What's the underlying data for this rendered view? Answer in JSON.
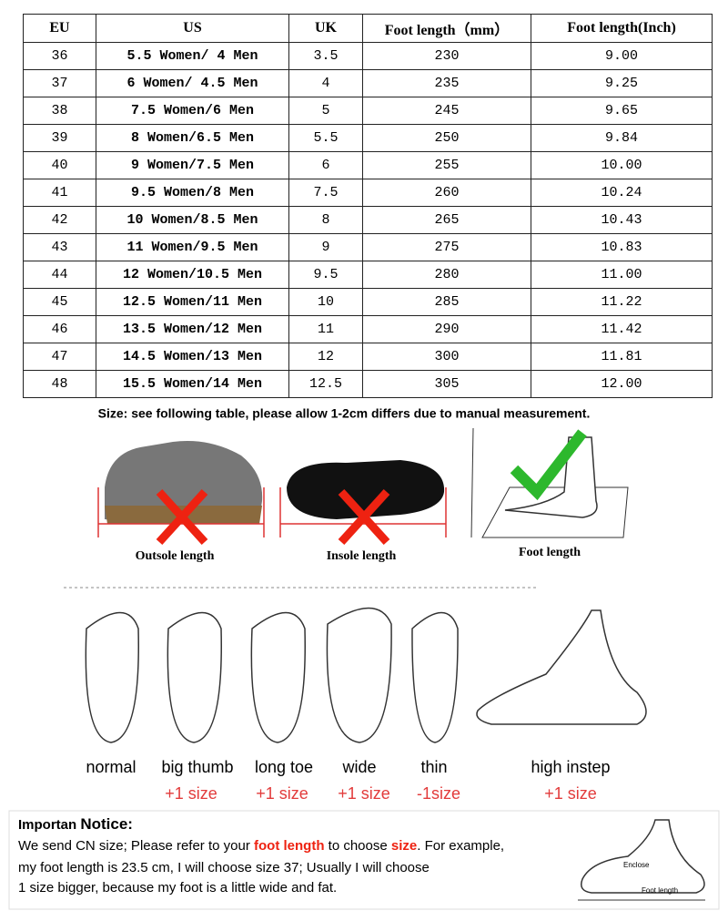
{
  "table": {
    "header": [
      "EU",
      "US",
      "UK",
      "Foot length（mm）",
      "Foot length(Inch)"
    ],
    "rows": [
      [
        "36",
        "5.5 Women/ 4 Men",
        "3.5",
        "230",
        "9.00"
      ],
      [
        "37",
        "6 Women/ 4.5 Men",
        "4",
        "235",
        "9.25"
      ],
      [
        "38",
        "7.5 Women/6 Men",
        "5",
        "245",
        "9.65"
      ],
      [
        "39",
        "8 Women/6.5 Men",
        "5.5",
        "250",
        "9.84"
      ],
      [
        "40",
        "9 Women/7.5 Men",
        "6",
        "255",
        "10.00"
      ],
      [
        "41",
        "9.5 Women/8 Men",
        "7.5",
        "260",
        "10.24"
      ],
      [
        "42",
        "10 Women/8.5 Men",
        "8",
        "265",
        "10.43"
      ],
      [
        "43",
        "11 Women/9.5 Men",
        "9",
        "275",
        "10.83"
      ],
      [
        "44",
        "12 Women/10.5 Men",
        "9.5",
        "280",
        "11.00"
      ],
      [
        "45",
        "12.5 Women/11 Men",
        "10",
        "285",
        "11.22"
      ],
      [
        "46",
        "13.5 Women/12 Men",
        "11",
        "290",
        "11.42"
      ],
      [
        "47",
        "14.5 Women/13 Men",
        "12",
        "300",
        "11.81"
      ],
      [
        "48",
        "15.5 Women/14 Men",
        "12.5",
        "305",
        "12.00"
      ]
    ]
  },
  "caption": "Size: see following table, please allow 1-2cm differs due to manual measurement.",
  "measure_labels": [
    "Outsole length",
    "Insole length",
    "Foot length"
  ],
  "foot_types": [
    {
      "label": "normal"
    },
    {
      "label": "big thumb",
      "advice": "+1 size"
    },
    {
      "label": "long toe",
      "advice": "+1 size"
    },
    {
      "label": "wide",
      "advice": "+1 size"
    },
    {
      "label": "thin",
      "advice": "-1size"
    },
    {
      "label": "high instep",
      "advice": "+1 size"
    }
  ],
  "notice": {
    "title_a": "Importan",
    "title_b": "Notice:",
    "line1": [
      "We send CN size; Please refer to your ",
      "foot length",
      " to choose ",
      "size",
      ". For example,"
    ],
    "line2": "my foot length is 23.5 cm, I will choose  size 37;  Usually I will choose",
    "line3": "1 size bigger, because my foot is a little wide and fat."
  },
  "diagram_labels": [
    "Enclose",
    "Foot length"
  ]
}
